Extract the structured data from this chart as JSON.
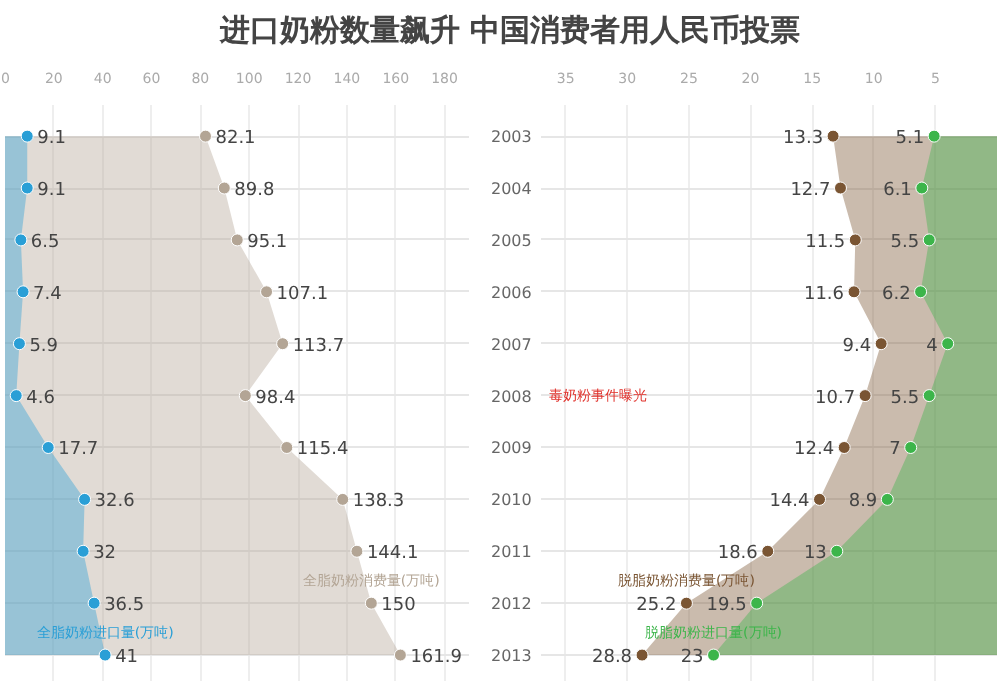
{
  "chart_data": [
    {
      "type": "area",
      "orientation": "horizontal",
      "title": "进口奶粉数量飙升 中国消费者用人民币投票",
      "categories": [
        "2003",
        "2004",
        "2005",
        "2006",
        "2007",
        "2008",
        "2009",
        "2010",
        "2011",
        "2012",
        "2013"
      ],
      "series": [
        {
          "name": "全脂奶粉消费量(万吨)",
          "color": "#b3a595",
          "values": [
            82.1,
            89.8,
            95.1,
            107.1,
            113.7,
            98.4,
            115.4,
            138.3,
            144.1,
            150,
            161.9
          ]
        },
        {
          "name": "全脂奶粉进口量(万吨)",
          "color": "#2a9fd6",
          "values": [
            9.1,
            9.1,
            6.5,
            7.4,
            5.9,
            4.6,
            17.7,
            32.6,
            32,
            36.5,
            41
          ]
        }
      ],
      "xlim": [
        0,
        190
      ],
      "xticks": [
        0,
        20,
        40,
        60,
        80,
        100,
        120,
        140,
        160,
        180
      ],
      "marker": "circle",
      "data_labels": true,
      "grid": true,
      "legend": false
    },
    {
      "type": "area",
      "orientation": "horizontal",
      "categories": [
        "2003",
        "2004",
        "2005",
        "2006",
        "2007",
        "2008",
        "2009",
        "2010",
        "2011",
        "2012",
        "2013"
      ],
      "series": [
        {
          "name": "脱脂奶粉消费量(万吨)",
          "color": "#7a5533",
          "values": [
            13.3,
            12.7,
            11.5,
            11.6,
            9.4,
            10.7,
            12.4,
            14.4,
            18.6,
            25.2,
            28.8
          ]
        },
        {
          "name": "脱脂奶粉进口量(万吨)",
          "color": "#3cb54a",
          "values": [
            5.1,
            6.1,
            5.5,
            6.2,
            4,
            5.5,
            7,
            8.9,
            13,
            19.5,
            23
          ]
        }
      ],
      "xlim": [
        37,
        0
      ],
      "xticks": [
        35,
        30,
        25,
        20,
        15,
        10,
        5
      ],
      "annotations": [
        "毒奶粉事件曝光"
      ],
      "marker": "circle",
      "data_labels": true,
      "grid": true,
      "legend": false,
      "tick_labels": "x"
    }
  ]
}
